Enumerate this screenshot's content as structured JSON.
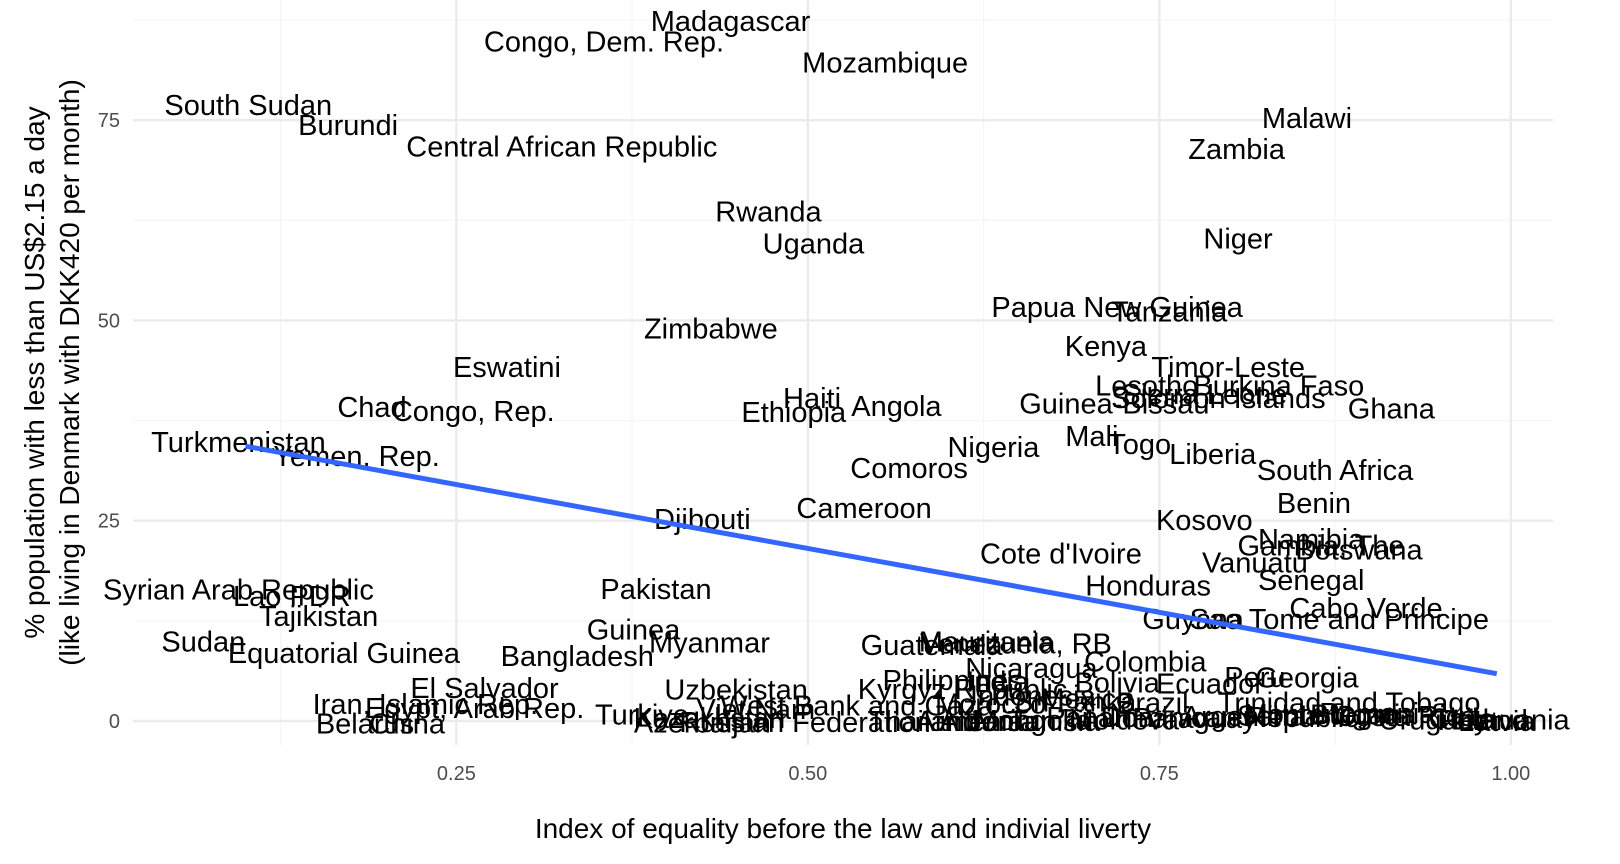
{
  "chart_data": {
    "type": "scatter",
    "title": "",
    "xlabel": "Index of equality before the law and indivial liverty",
    "ylabel": "% population with less than US$2.15 a day",
    "ylabel_line2": "(like living in Denmark with DKK420 per month)",
    "xlim": [
      0.02,
      1.03
    ],
    "ylim": [
      -3,
      90
    ],
    "x_ticks": [
      0.25,
      0.5,
      0.75,
      1.0
    ],
    "x_tick_labels": [
      "0.25",
      "0.50",
      "0.75",
      "1.00"
    ],
    "y_ticks": [
      0,
      25,
      50,
      75
    ],
    "y_tick_labels": [
      "0",
      "25",
      "50",
      "75"
    ],
    "grid": true,
    "legend": "none",
    "colors": {
      "trend": "#3366FF",
      "grid_major": "#EBEBEB",
      "grid_minor": "#F5F5F5",
      "text": "#000000",
      "tick": "#4D4D4D"
    },
    "trend_line": {
      "x": [
        0.1,
        0.99
      ],
      "y": [
        34.3,
        5.9
      ]
    },
    "points": [
      {
        "label": "Madagascar",
        "x": 0.445,
        "y": 87.4
      },
      {
        "label": "Congo, Dem. Rep.",
        "x": 0.355,
        "y": 84.8
      },
      {
        "label": "Mozambique",
        "x": 0.555,
        "y": 82.2
      },
      {
        "label": "South Sudan",
        "x": 0.102,
        "y": 76.9
      },
      {
        "label": "Burundi",
        "x": 0.173,
        "y": 74.4
      },
      {
        "label": "Central African Republic",
        "x": 0.325,
        "y": 71.7
      },
      {
        "label": "Malawi",
        "x": 0.855,
        "y": 75.3
      },
      {
        "label": "Zambia",
        "x": 0.805,
        "y": 71.4
      },
      {
        "label": "Rwanda",
        "x": 0.472,
        "y": 63.6
      },
      {
        "label": "Uganda",
        "x": 0.504,
        "y": 59.6
      },
      {
        "label": "Niger",
        "x": 0.806,
        "y": 60.2
      },
      {
        "label": "Papua New Guinea",
        "x": 0.72,
        "y": 51.7
      },
      {
        "label": "Tanzania",
        "x": 0.757,
        "y": 51.1
      },
      {
        "label": "Zimbabwe",
        "x": 0.431,
        "y": 49.0
      },
      {
        "label": "Kenya",
        "x": 0.712,
        "y": 46.8
      },
      {
        "label": "Eswatini",
        "x": 0.286,
        "y": 44.2
      },
      {
        "label": "Timor-Leste",
        "x": 0.799,
        "y": 44.2
      },
      {
        "label": "Lesotho",
        "x": 0.741,
        "y": 41.9
      },
      {
        "label": "Burkina Faso",
        "x": 0.835,
        "y": 41.9
      },
      {
        "label": "Solomon Islands",
        "x": 0.792,
        "y": 40.3
      },
      {
        "label": "Sierra Leone",
        "x": 0.782,
        "y": 40.8
      },
      {
        "label": "Haiti",
        "x": 0.503,
        "y": 40.3
      },
      {
        "label": "Angola",
        "x": 0.563,
        "y": 39.3
      },
      {
        "label": "Ethiopia",
        "x": 0.49,
        "y": 38.6
      },
      {
        "label": "Guinea-Bissau",
        "x": 0.718,
        "y": 39.6
      },
      {
        "label": "Ghana",
        "x": 0.915,
        "y": 39.0
      },
      {
        "label": "Chad",
        "x": 0.19,
        "y": 39.2
      },
      {
        "label": "Congo, Rep.",
        "x": 0.262,
        "y": 38.7
      },
      {
        "label": "Mali",
        "x": 0.702,
        "y": 35.6
      },
      {
        "label": "Turkmenistan",
        "x": 0.095,
        "y": 34.8
      },
      {
        "label": "Togo",
        "x": 0.736,
        "y": 34.6
      },
      {
        "label": "Nigeria",
        "x": 0.632,
        "y": 34.2
      },
      {
        "label": "Liberia",
        "x": 0.788,
        "y": 33.3
      },
      {
        "label": "Yemen, Rep.",
        "x": 0.179,
        "y": 33.1
      },
      {
        "label": "Comoros",
        "x": 0.572,
        "y": 31.6
      },
      {
        "label": "South Africa",
        "x": 0.875,
        "y": 31.3
      },
      {
        "label": "Benin",
        "x": 0.86,
        "y": 27.2
      },
      {
        "label": "Cameroon",
        "x": 0.54,
        "y": 26.6
      },
      {
        "label": "Djibouti",
        "x": 0.425,
        "y": 25.2
      },
      {
        "label": "Kosovo",
        "x": 0.782,
        "y": 25.1
      },
      {
        "label": "Namibia",
        "x": 0.858,
        "y": 22.7
      },
      {
        "label": "Gambia, The",
        "x": 0.865,
        "y": 21.9
      },
      {
        "label": "Botswana",
        "x": 0.892,
        "y": 21.4
      },
      {
        "label": "Cote d'Ivoire",
        "x": 0.68,
        "y": 20.9
      },
      {
        "label": "Vanuatu",
        "x": 0.818,
        "y": 19.8
      },
      {
        "label": "Senegal",
        "x": 0.858,
        "y": 17.6
      },
      {
        "label": "Honduras",
        "x": 0.742,
        "y": 16.9
      },
      {
        "label": "Pakistan",
        "x": 0.392,
        "y": 16.5
      },
      {
        "label": "Syrian Arab Republic",
        "x": 0.095,
        "y": 16.4
      },
      {
        "label": "Lao PDR",
        "x": 0.133,
        "y": 15.6
      },
      {
        "label": "Tajikistan",
        "x": 0.152,
        "y": 13.1
      },
      {
        "label": "Cabo Verde",
        "x": 0.897,
        "y": 14.1
      },
      {
        "label": "Guyana",
        "x": 0.774,
        "y": 12.7
      },
      {
        "label": "Sao Tome and Principe",
        "x": 0.878,
        "y": 12.7
      },
      {
        "label": "Guinea",
        "x": 0.376,
        "y": 11.4
      },
      {
        "label": "Myanmar",
        "x": 0.43,
        "y": 9.8
      },
      {
        "label": "Sudan",
        "x": 0.07,
        "y": 9.9
      },
      {
        "label": "Equatorial Guinea",
        "x": 0.17,
        "y": 8.5
      },
      {
        "label": "Guatemala",
        "x": 0.588,
        "y": 9.5
      },
      {
        "label": "Mauritania",
        "x": 0.627,
        "y": 9.9
      },
      {
        "label": "Venezuela, RB",
        "x": 0.648,
        "y": 9.7
      },
      {
        "label": "Bangladesh",
        "x": 0.336,
        "y": 8.1
      },
      {
        "label": "Colombia",
        "x": 0.74,
        "y": 7.4
      },
      {
        "label": "Nicaragua",
        "x": 0.659,
        "y": 6.6
      },
      {
        "label": "Peru",
        "x": 0.818,
        "y": 5.5
      },
      {
        "label": "Georgia",
        "x": 0.855,
        "y": 5.4
      },
      {
        "label": "Philippines",
        "x": 0.603,
        "y": 5.1
      },
      {
        "label": "India",
        "x": 0.635,
        "y": 4.9
      },
      {
        "label": "Bolivia",
        "x": 0.72,
        "y": 4.8
      },
      {
        "label": "Ecuador",
        "x": 0.786,
        "y": 4.7
      },
      {
        "label": "Kyrgyz Republic",
        "x": 0.61,
        "y": 4.0
      },
      {
        "label": "El Salvador",
        "x": 0.27,
        "y": 4.1
      },
      {
        "label": "Uzbekistan",
        "x": 0.449,
        "y": 3.9
      },
      {
        "label": "Indonesia",
        "x": 0.66,
        "y": 3.2
      },
      {
        "label": "Mexico",
        "x": 0.698,
        "y": 2.8
      },
      {
        "label": "Sri Lanka",
        "x": 0.69,
        "y": 2.4
      },
      {
        "label": "Morocco",
        "x": 0.63,
        "y": 2.2
      },
      {
        "label": "Trinidad and Tobago",
        "x": 0.885,
        "y": 2.3
      },
      {
        "label": "Brazil",
        "x": 0.745,
        "y": 2.3
      },
      {
        "label": "Iran, Islamic Rep.",
        "x": 0.228,
        "y": 2.1
      },
      {
        "label": "Egypt, Arab Rep.",
        "x": 0.263,
        "y": 1.6
      },
      {
        "label": "West Bank and Gaza",
        "x": 0.535,
        "y": 1.9
      },
      {
        "label": "Viet Nam",
        "x": 0.463,
        "y": 1.5
      },
      {
        "label": "Turkiye",
        "x": 0.382,
        "y": 0.8
      },
      {
        "label": "Azerbaijan",
        "x": 0.425,
        "y": -0.2
      },
      {
        "label": "Kazakhstan",
        "x": 0.43,
        "y": 0.4
      },
      {
        "label": "Russian Federation",
        "x": 0.498,
        "y": -0.1
      },
      {
        "label": "Belarus",
        "x": 0.185,
        "y": -0.3
      },
      {
        "label": "China",
        "x": 0.215,
        "y": -0.3
      },
      {
        "label": "Thailand",
        "x": 0.582,
        "y": 0.0
      },
      {
        "label": "Albania",
        "x": 0.628,
        "y": 0.0
      },
      {
        "label": "Armenia",
        "x": 0.615,
        "y": 0.0
      },
      {
        "label": "Mongolia",
        "x": 0.66,
        "y": 0.1
      },
      {
        "label": "Panama",
        "x": 0.708,
        "y": 0.5
      },
      {
        "label": "Tunisia",
        "x": 0.675,
        "y": 0.0
      },
      {
        "label": "Jordan",
        "x": 0.645,
        "y": 0.0
      },
      {
        "label": "Moldova",
        "x": 0.725,
        "y": 0.2
      },
      {
        "label": "Paraguay",
        "x": 0.775,
        "y": 0.4
      },
      {
        "label": "Argentina",
        "x": 0.81,
        "y": 0.6
      },
      {
        "label": "Dominican Republic",
        "x": 0.8,
        "y": 0.5
      },
      {
        "label": "Serbia",
        "x": 0.835,
        "y": 0.7
      },
      {
        "label": "Montenegro",
        "x": 0.865,
        "y": 0.9
      },
      {
        "label": "Bulgaria",
        "x": 0.895,
        "y": 0.8
      },
      {
        "label": "Romania",
        "x": 0.905,
        "y": 1.0
      },
      {
        "label": "Costa Rica",
        "x": 0.925,
        "y": 0.6
      },
      {
        "label": "Uruguay",
        "x": 0.945,
        "y": 0.2
      },
      {
        "label": "Chile",
        "x": 0.965,
        "y": 0.3
      },
      {
        "label": "Poland",
        "x": 0.98,
        "y": 0.1
      },
      {
        "label": "Latvia",
        "x": 0.99,
        "y": 0.0
      },
      {
        "label": "Lithuania",
        "x": 1.0,
        "y": 0.2
      }
    ]
  }
}
